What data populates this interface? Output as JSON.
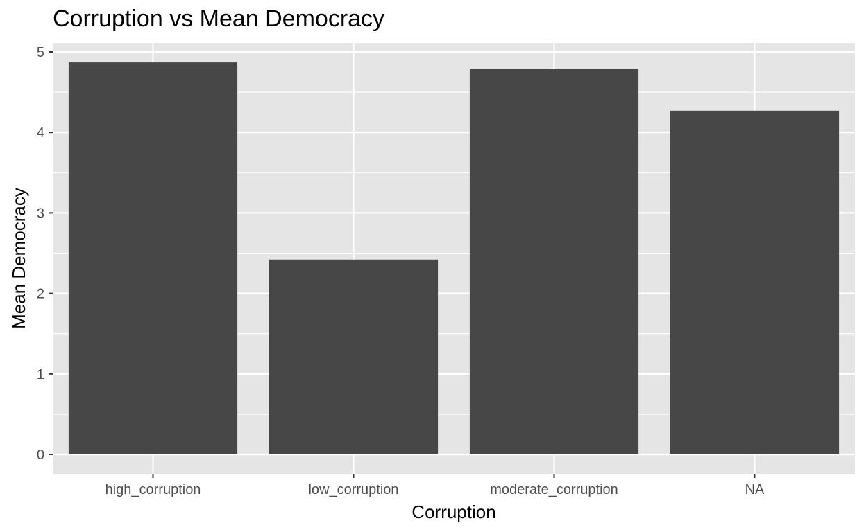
{
  "chart_data": {
    "type": "bar",
    "title": "Corruption vs Mean Democracy",
    "xlabel": "Corruption",
    "ylabel": "Mean Democracy",
    "categories": [
      "high_corruption",
      "low_corruption",
      "moderate_corruption",
      "NA"
    ],
    "values": [
      4.87,
      2.42,
      4.79,
      4.27
    ],
    "ylim": [
      0,
      5
    ],
    "yticks": [
      "0",
      "1",
      "2",
      "3",
      "4",
      "5"
    ],
    "grid": true,
    "legend": "none",
    "colors": {
      "bar": "#474747",
      "panel": "#e5e5e5",
      "grid": "#ffffff",
      "axis_text": "#4d4d4d",
      "axis_title": "#000000"
    }
  }
}
